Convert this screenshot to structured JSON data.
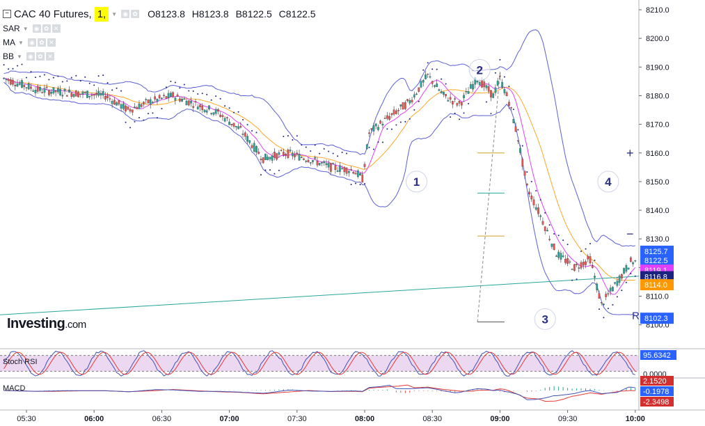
{
  "header": {
    "symbol": "CAC 40 Futures,",
    "resolution": "1,",
    "open": "O8123.8",
    "high": "H8123.8",
    "low": "B8122.5",
    "close": "C8122.5"
  },
  "indicators": [
    {
      "label": "SAR"
    },
    {
      "label": "MA"
    },
    {
      "label": "BB"
    }
  ],
  "logo": {
    "brand": "Investing",
    ".com": ".com"
  },
  "colors": {
    "up": "#26a69a",
    "down": "#ef5350",
    "bb": "#5b5fd6",
    "sar": "#1a237e",
    "ma_fast": "#e040fb",
    "ma_slow": "#ffa726",
    "trend": "#26a69a",
    "rsi_k": "#3f51b5",
    "rsi_d": "#e53935",
    "rsi_band": "#e1bee7"
  },
  "zoom": {
    "plus": "+",
    "minus": "−"
  },
  "chart_data": {
    "type": "candlestick",
    "x_ticks": [
      "05:30",
      "06:00",
      "06:30",
      "07:00",
      "07:30",
      "08:00",
      "08:30",
      "09:00",
      "09:30",
      "10:00"
    ],
    "y_ticks": [
      "8210.0",
      "8200.0",
      "8190.0",
      "8180.0",
      "8170.0",
      "8160.0",
      "8150.0",
      "8140.0",
      "8130.0",
      "8120.0",
      "8110.0",
      "8100.0"
    ],
    "ylim": [
      8097,
      8212
    ],
    "price_path": [
      [
        "05:20",
        8186
      ],
      [
        "05:35",
        8182
      ],
      [
        "05:50",
        8181
      ],
      [
        "06:05",
        8180
      ],
      [
        "06:15",
        8175
      ],
      [
        "06:25",
        8178
      ],
      [
        "06:35",
        8180
      ],
      [
        "06:45",
        8177
      ],
      [
        "06:55",
        8174
      ],
      [
        "07:05",
        8168
      ],
      [
        "07:15",
        8158
      ],
      [
        "07:25",
        8160
      ],
      [
        "07:35",
        8158
      ],
      [
        "07:45",
        8155
      ],
      [
        "07:55",
        8154
      ],
      [
        "07:59",
        8151
      ],
      [
        "08:02",
        8167
      ],
      [
        "08:10",
        8172
      ],
      [
        "08:20",
        8178
      ],
      [
        "08:28",
        8187
      ],
      [
        "08:35",
        8180
      ],
      [
        "08:42",
        8177
      ],
      [
        "08:50",
        8186
      ],
      [
        "08:57",
        8180
      ],
      [
        "09:00",
        8186
      ],
      [
        "09:04",
        8178
      ],
      [
        "09:08",
        8165
      ],
      [
        "09:12",
        8148
      ],
      [
        "09:18",
        8138
      ],
      [
        "09:25",
        8125
      ],
      [
        "09:33",
        8120
      ],
      [
        "09:40",
        8123
      ],
      [
        "09:45",
        8107
      ],
      [
        "09:52",
        8115
      ],
      [
        "09:58",
        8122
      ]
    ],
    "wave_labels": [
      {
        "label": "1",
        "time": "08:23",
        "price": 8150
      },
      {
        "label": "2",
        "time": "08:51",
        "price": 8189
      },
      {
        "label": "3",
        "time": "09:20",
        "price": 8102
      },
      {
        "label": "4",
        "time": "09:48",
        "price": 8150
      }
    ],
    "fib_levels": [
      {
        "price": 8160,
        "color": "#c9a227"
      },
      {
        "price": 8146,
        "color": "#26a69a"
      },
      {
        "price": 8131,
        "color": "#c9a227"
      },
      {
        "price": 8101,
        "color": "#555555"
      }
    ],
    "price_labels": [
      {
        "value": "8125.7",
        "bg": "#2962ff"
      },
      {
        "value": "8122.5",
        "bg": "#2962ff"
      },
      {
        "value": "8119.1",
        "bg": "#e040fb"
      },
      {
        "value": "8116.8",
        "bg": "#1a237e"
      },
      {
        "value": "8114.0",
        "bg": "#ff9800"
      },
      {
        "value": "8102.3",
        "bg": "#2962ff"
      }
    ],
    "partial_label": "R",
    "stoch_rsi": {
      "label": "Stoch RSI",
      "value": "95.6342",
      "zero": "0.0000",
      "upper": 80,
      "lower": 20
    },
    "macd": {
      "label": "MACD",
      "values": [
        "2.1520",
        "-0.1978",
        "-2.3498"
      ]
    }
  }
}
